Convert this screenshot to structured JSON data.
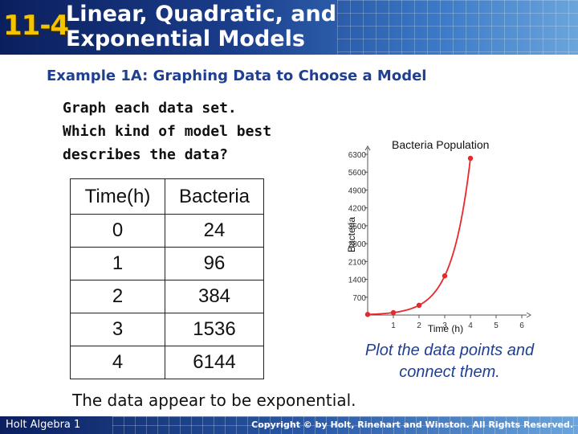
{
  "header": {
    "lesson_number": "11-4",
    "title_line1": "Linear, Quadratic, and",
    "title_line2": "Exponential Models"
  },
  "example_title": "Example 1A: Graphing Data to Choose a Model",
  "prompt": {
    "line1": "Graph each data set.",
    "line2": "Which kind of model best",
    "line3": "describes the data?"
  },
  "table": {
    "headers": [
      "Time(h)",
      "Bacteria"
    ],
    "rows": [
      [
        "0",
        "24"
      ],
      [
        "1",
        "96"
      ],
      [
        "2",
        "384"
      ],
      [
        "3",
        "1536"
      ],
      [
        "4",
        "6144"
      ]
    ]
  },
  "hint": {
    "line1": "Plot the data points and",
    "line2": "connect them."
  },
  "conclusion": "The data appear to be exponential.",
  "footer": {
    "left": "Holt Algebra 1",
    "right": "Copyright © by Holt, Rinehart and Winston. All Rights Reserved."
  },
  "colors": {
    "curve": "#e8282a",
    "header_accent": "#f5c400",
    "title_blue": "#1f3f93"
  },
  "chart_data": {
    "type": "line",
    "title": "Bacteria Population",
    "xlabel": "Time (h)",
    "ylabel": "Bacteria",
    "x": [
      0,
      1,
      2,
      3,
      4
    ],
    "y": [
      24,
      96,
      384,
      1536,
      6144
    ],
    "x_ticks": [
      "1",
      "2",
      "3",
      "4",
      "5",
      "6"
    ],
    "y_ticks": [
      "700",
      "1400",
      "2100",
      "2800",
      "3500",
      "4200",
      "4900",
      "5600",
      "6300"
    ],
    "xlim": [
      0,
      6
    ],
    "ylim": [
      0,
      6300
    ],
    "grid": false
  }
}
